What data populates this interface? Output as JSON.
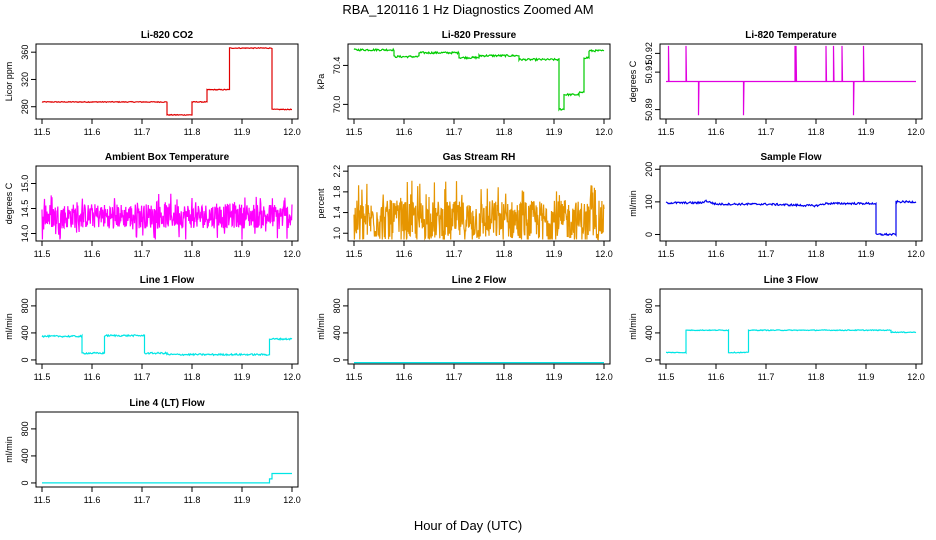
{
  "page": {
    "title": "RBA_120116  1 Hz Diagnostics Zoomed AM",
    "xlabel": "Hour of Day (UTC)"
  },
  "chart_data": [
    {
      "type": "line",
      "title": "Li-820 CO2",
      "ylabel": "Licor ppm",
      "color": "#e00000",
      "xlim": [
        11.5,
        12.0
      ],
      "ylim": [
        262,
        372
      ],
      "xticks": [
        "11.5",
        "11.6",
        "11.7",
        "11.8",
        "11.9",
        "12.0"
      ],
      "yticks": [
        {
          "v": 280,
          "label": "280"
        },
        {
          "v": 320,
          "label": "320"
        },
        {
          "v": 360,
          "label": "360"
        }
      ],
      "style": "step",
      "noise": 0.6,
      "x": [
        11.5,
        11.75,
        11.75,
        11.8,
        11.8,
        11.83,
        11.83,
        11.875,
        11.875,
        11.96,
        11.96,
        12.0
      ],
      "y": [
        287,
        287,
        268,
        268,
        287,
        287,
        305,
        305,
        366,
        366,
        276,
        276
      ]
    },
    {
      "type": "line",
      "title": "Li-820 Pressure",
      "ylabel": "kPa",
      "color": "#00cc00",
      "xlim": [
        11.5,
        12.0
      ],
      "ylim": [
        69.85,
        70.62
      ],
      "xticks": [
        "11.5",
        "11.6",
        "11.7",
        "11.8",
        "11.9",
        "12.0"
      ],
      "yticks": [
        {
          "v": 70.0,
          "label": "70.0"
        },
        {
          "v": 70.4,
          "label": "70.4"
        }
      ],
      "style": "step",
      "noise": 0.01,
      "x": [
        11.5,
        11.58,
        11.58,
        11.63,
        11.63,
        11.71,
        11.71,
        11.75,
        11.75,
        11.83,
        11.83,
        11.91,
        11.91,
        11.92,
        11.92,
        11.95,
        11.95,
        11.96,
        11.96,
        11.97,
        11.97,
        12.0
      ],
      "y": [
        70.56,
        70.56,
        70.49,
        70.49,
        70.53,
        70.53,
        70.48,
        70.48,
        70.5,
        70.5,
        70.46,
        70.46,
        69.95,
        69.95,
        70.1,
        70.1,
        70.12,
        70.12,
        70.48,
        70.48,
        70.55,
        70.55
      ]
    },
    {
      "type": "line",
      "title": "Li-820 Temperature",
      "ylabel": "degrees C",
      "color": "#e000e0",
      "xlim": [
        11.5,
        12.0
      ],
      "ylim": [
        50.885,
        50.925
      ],
      "xticks": [
        "11.5",
        "11.6",
        "11.7",
        "11.8",
        "11.9",
        "12.0"
      ],
      "yticks": [
        {
          "v": 50.89,
          "label": "50.89"
        },
        {
          "v": 50.91,
          "label": "50.91"
        },
        {
          "v": 50.92,
          "label": "50.92"
        }
      ],
      "style": "spikes",
      "base": 50.905,
      "spikes": [
        [
          11.505,
          50.924
        ],
        [
          11.54,
          50.924
        ],
        [
          11.565,
          50.887
        ],
        [
          11.655,
          50.887
        ],
        [
          11.758,
          50.924
        ],
        [
          11.76,
          50.924
        ],
        [
          11.82,
          50.924
        ],
        [
          11.835,
          50.924
        ],
        [
          11.852,
          50.924
        ],
        [
          11.875,
          50.887
        ],
        [
          11.895,
          50.924
        ]
      ]
    },
    {
      "type": "line",
      "title": "Ambient Box Temperature",
      "ylabel": "degrees C",
      "color": "#ff00ff",
      "xlim": [
        11.5,
        12.0
      ],
      "ylim": [
        13.85,
        15.35
      ],
      "xticks": [
        "11.5",
        "11.6",
        "11.7",
        "11.8",
        "11.9",
        "12.0"
      ],
      "yticks": [
        {
          "v": 14.0,
          "label": "14.0"
        },
        {
          "v": 14.5,
          "label": "14.5"
        },
        {
          "v": 15.0,
          "label": "15.0"
        }
      ],
      "style": "noise",
      "mean": 14.35,
      "spread": 0.55,
      "npts": 600
    },
    {
      "type": "line",
      "title": "Gas Stream RH",
      "ylabel": "percent",
      "color": "#e69500",
      "xlim": [
        11.5,
        12.0
      ],
      "ylim": [
        0.85,
        2.3
      ],
      "xticks": [
        "11.5",
        "11.6",
        "11.7",
        "11.8",
        "11.9",
        "12.0"
      ],
      "yticks": [
        {
          "v": 1.0,
          "label": "1.0"
        },
        {
          "v": 1.4,
          "label": "1.4"
        },
        {
          "v": 1.8,
          "label": "1.8"
        },
        {
          "v": 2.2,
          "label": "2.2"
        }
      ],
      "style": "noise",
      "mean": 1.25,
      "spread": 0.85,
      "npts": 600
    },
    {
      "type": "line",
      "title": "Sample Flow",
      "ylabel": "ml/min",
      "color": "#0000ee",
      "xlim": [
        11.5,
        12.0
      ],
      "ylim": [
        -20,
        210
      ],
      "xticks": [
        "11.5",
        "11.6",
        "11.7",
        "11.8",
        "11.9",
        "12.0"
      ],
      "yticks": [
        {
          "v": 0,
          "label": "0"
        },
        {
          "v": 100,
          "label": "100"
        },
        {
          "v": 200,
          "label": "200"
        }
      ],
      "style": "step",
      "noise": 3,
      "x": [
        11.5,
        11.57,
        11.58,
        11.6,
        11.7,
        11.8,
        11.82,
        11.92,
        11.92,
        11.96,
        11.96,
        12.0
      ],
      "y": [
        97,
        97,
        103,
        93,
        93,
        88,
        95,
        95,
        0,
        0,
        100,
        100
      ]
    },
    {
      "type": "line",
      "title": "Line 1 Flow",
      "ylabel": "ml/min",
      "color": "#00e5e5",
      "xlim": [
        11.5,
        12.0
      ],
      "ylim": [
        -60,
        1050
      ],
      "xticks": [
        "11.5",
        "11.6",
        "11.7",
        "11.8",
        "11.9",
        "12.0"
      ],
      "yticks": [
        {
          "v": 0,
          "label": "0"
        },
        {
          "v": 400,
          "label": "400"
        },
        {
          "v": 800,
          "label": "800"
        }
      ],
      "style": "step",
      "noise": 12,
      "x": [
        11.5,
        11.58,
        11.58,
        11.625,
        11.625,
        11.705,
        11.705,
        11.75,
        11.75,
        11.955,
        11.955,
        12.0
      ],
      "y": [
        350,
        350,
        100,
        100,
        360,
        360,
        100,
        100,
        80,
        80,
        310,
        310
      ]
    },
    {
      "type": "line",
      "title": "Line 2 Flow",
      "ylabel": "ml/min",
      "color": "#00e5e5",
      "xlim": [
        11.5,
        12.0
      ],
      "ylim": [
        -60,
        1050
      ],
      "xticks": [
        "11.5",
        "11.6",
        "11.7",
        "11.8",
        "11.9",
        "12.0"
      ],
      "yticks": [
        {
          "v": 0,
          "label": "0"
        },
        {
          "v": 400,
          "label": "400"
        },
        {
          "v": 800,
          "label": "800"
        }
      ],
      "style": "step",
      "noise": 0,
      "x": [
        11.5,
        12.0
      ],
      "y": [
        -40,
        -40
      ]
    },
    {
      "type": "line",
      "title": "Line 3 Flow",
      "ylabel": "ml/min",
      "color": "#00e5e5",
      "xlim": [
        11.5,
        12.0
      ],
      "ylim": [
        -60,
        1050
      ],
      "xticks": [
        "11.5",
        "11.6",
        "11.7",
        "11.8",
        "11.9",
        "12.0"
      ],
      "yticks": [
        {
          "v": 0,
          "label": "0"
        },
        {
          "v": 400,
          "label": "400"
        },
        {
          "v": 800,
          "label": "800"
        }
      ],
      "style": "step",
      "noise": 6,
      "x": [
        11.5,
        11.54,
        11.54,
        11.625,
        11.625,
        11.665,
        11.665,
        11.95,
        11.95,
        12.0
      ],
      "y": [
        110,
        110,
        440,
        440,
        110,
        110,
        440,
        440,
        410,
        410
      ]
    },
    {
      "type": "line",
      "title": "Line 4 (LT) Flow",
      "ylabel": "ml/min",
      "color": "#00e5e5",
      "xlim": [
        11.5,
        12.0
      ],
      "ylim": [
        -60,
        1050
      ],
      "xticks": [
        "11.5",
        "11.6",
        "11.7",
        "11.8",
        "11.9",
        "12.0"
      ],
      "yticks": [
        {
          "v": 0,
          "label": "0"
        },
        {
          "v": 400,
          "label": "400"
        },
        {
          "v": 800,
          "label": "800"
        }
      ],
      "style": "step",
      "noise": 0,
      "x": [
        11.5,
        11.955,
        11.955,
        11.96,
        11.96,
        12.0
      ],
      "y": [
        0,
        0,
        60,
        60,
        140,
        140
      ]
    }
  ]
}
